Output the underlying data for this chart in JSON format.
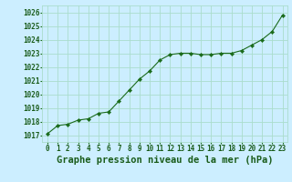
{
  "x": [
    0,
    1,
    2,
    3,
    4,
    5,
    6,
    7,
    8,
    9,
    10,
    11,
    12,
    13,
    14,
    15,
    16,
    17,
    18,
    19,
    20,
    21,
    22,
    23
  ],
  "y": [
    1017.1,
    1017.7,
    1017.8,
    1018.1,
    1018.2,
    1018.6,
    1018.7,
    1019.5,
    1020.3,
    1021.1,
    1021.7,
    1022.5,
    1022.9,
    1023.0,
    1023.0,
    1022.9,
    1022.9,
    1023.0,
    1023.0,
    1023.2,
    1023.6,
    1024.0,
    1024.6,
    1025.8
  ],
  "line_color": "#1a6b1a",
  "marker_color": "#1a6b1a",
  "bg_color": "#cceeff",
  "grid_color": "#aaddcc",
  "xlabel": "Graphe pression niveau de la mer (hPa)",
  "ylabel_ticks": [
    1017,
    1018,
    1019,
    1020,
    1021,
    1022,
    1023,
    1024,
    1025,
    1026
  ],
  "ylim": [
    1016.5,
    1026.5
  ],
  "xlim": [
    -0.5,
    23.5
  ],
  "title_color": "#1a5c1a",
  "tick_fontsize": 5.5,
  "xlabel_fontsize": 7.5
}
